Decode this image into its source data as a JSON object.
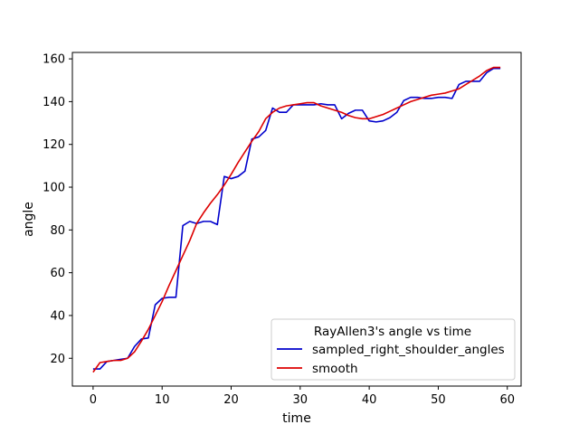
{
  "chart_data": {
    "type": "line",
    "title": "",
    "xlabel": "time",
    "ylabel": "angle",
    "xlim": [
      -3,
      62
    ],
    "ylim": [
      7,
      163
    ],
    "xticks": [
      0,
      10,
      20,
      30,
      40,
      50,
      60
    ],
    "yticks": [
      20,
      40,
      60,
      80,
      100,
      120,
      140,
      160
    ],
    "grid": false,
    "legend": {
      "title": "RayAllen3's angle vs time",
      "placement": "lower right"
    },
    "series": [
      {
        "name": "sampled_right_shoulder_angles",
        "color": "#0000cc",
        "x": [
          0,
          1,
          2,
          3,
          4,
          5,
          6,
          7,
          8,
          9,
          10,
          11,
          12,
          13,
          14,
          15,
          16,
          17,
          18,
          19,
          20,
          21,
          22,
          23,
          24,
          25,
          26,
          27,
          28,
          29,
          30,
          31,
          32,
          33,
          34,
          35,
          36,
          37,
          38,
          39,
          40,
          41,
          42,
          43,
          44,
          45,
          46,
          47,
          48,
          49,
          50,
          51,
          52,
          53,
          54,
          55,
          56,
          57,
          58,
          59
        ],
        "y": [
          15,
          15,
          18.5,
          19,
          19.5,
          20,
          25.5,
          29,
          29.5,
          45,
          48,
          48.5,
          48.5,
          82,
          84,
          83,
          84,
          84,
          82.5,
          105,
          104,
          105,
          107.5,
          122.5,
          123.5,
          126.5,
          137,
          135,
          135,
          138.5,
          138.5,
          138.5,
          138.5,
          139,
          138.5,
          138.5,
          132,
          134.5,
          136,
          136,
          131,
          130.5,
          131,
          132.5,
          135,
          140.5,
          142,
          142,
          141.5,
          141.5,
          142,
          142,
          141.5,
          148,
          149.5,
          149.5,
          149.5,
          153.5,
          155.5,
          155.5
        ]
      },
      {
        "name": "smooth",
        "color": "#dd0000",
        "x": [
          0,
          1,
          2,
          3,
          4,
          5,
          6,
          7,
          8,
          9,
          10,
          11,
          12,
          13,
          14,
          15,
          16,
          17,
          18,
          19,
          20,
          21,
          22,
          23,
          24,
          25,
          26,
          27,
          28,
          29,
          30,
          31,
          32,
          33,
          34,
          35,
          36,
          37,
          38,
          39,
          40,
          41,
          42,
          43,
          44,
          45,
          46,
          47,
          48,
          49,
          50,
          51,
          52,
          53,
          54,
          55,
          56,
          57,
          58,
          59
        ],
        "y": [
          13.5,
          18,
          18.5,
          19,
          19,
          20,
          23,
          28,
          33.5,
          40,
          46.5,
          54,
          61,
          68,
          75,
          83,
          88,
          92.5,
          96.5,
          101,
          106,
          111.5,
          116.5,
          121.5,
          126,
          132,
          135,
          137,
          138,
          138.5,
          139,
          139.5,
          139.5,
          138,
          137,
          136,
          135,
          133.5,
          132.5,
          132,
          132,
          133,
          134,
          135.5,
          137,
          138.5,
          140,
          141,
          142,
          143,
          143.5,
          144,
          145,
          146,
          148,
          150,
          152,
          154.5,
          156,
          156
        ]
      }
    ]
  }
}
